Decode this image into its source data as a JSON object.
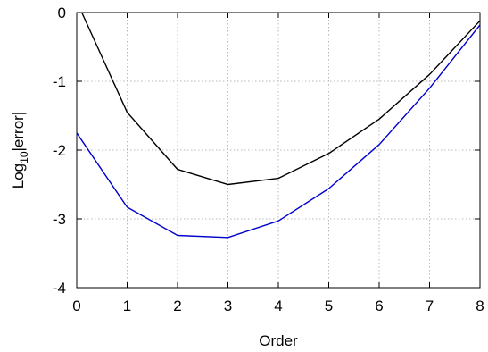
{
  "chart_data": {
    "type": "line",
    "title": "",
    "xlabel": "Order",
    "ylabel_base": "Log",
    "ylabel_sub": "10",
    "ylabel_rest": "|error|",
    "xlim": [
      0,
      8
    ],
    "ylim": [
      -4,
      0
    ],
    "x_ticks": [
      0,
      1,
      2,
      3,
      4,
      5,
      6,
      7,
      8
    ],
    "y_ticks": [
      0,
      -1,
      -2,
      -3,
      -4
    ],
    "x_tick_labels": [
      "0",
      "1",
      "2",
      "3",
      "4",
      "5",
      "6",
      "7",
      "8"
    ],
    "y_tick_labels": [
      "0",
      "-1",
      "-2",
      "-3",
      "-4"
    ],
    "grid": true,
    "legend": "none",
    "series": [
      {
        "color": "#000000",
        "x": [
          0.1,
          1,
          2,
          3,
          4,
          5,
          6,
          7,
          8
        ],
        "y": [
          0.0,
          -1.45,
          -2.28,
          -2.5,
          -2.41,
          -2.05,
          -1.55,
          -0.9,
          -0.12
        ]
      },
      {
        "color": "#0000cc",
        "x": [
          0,
          1,
          2,
          3,
          4,
          5,
          6,
          7,
          8
        ],
        "y": [
          -1.75,
          -2.83,
          -3.24,
          -3.27,
          -3.03,
          -2.56,
          -1.92,
          -1.1,
          -0.18
        ]
      }
    ]
  }
}
